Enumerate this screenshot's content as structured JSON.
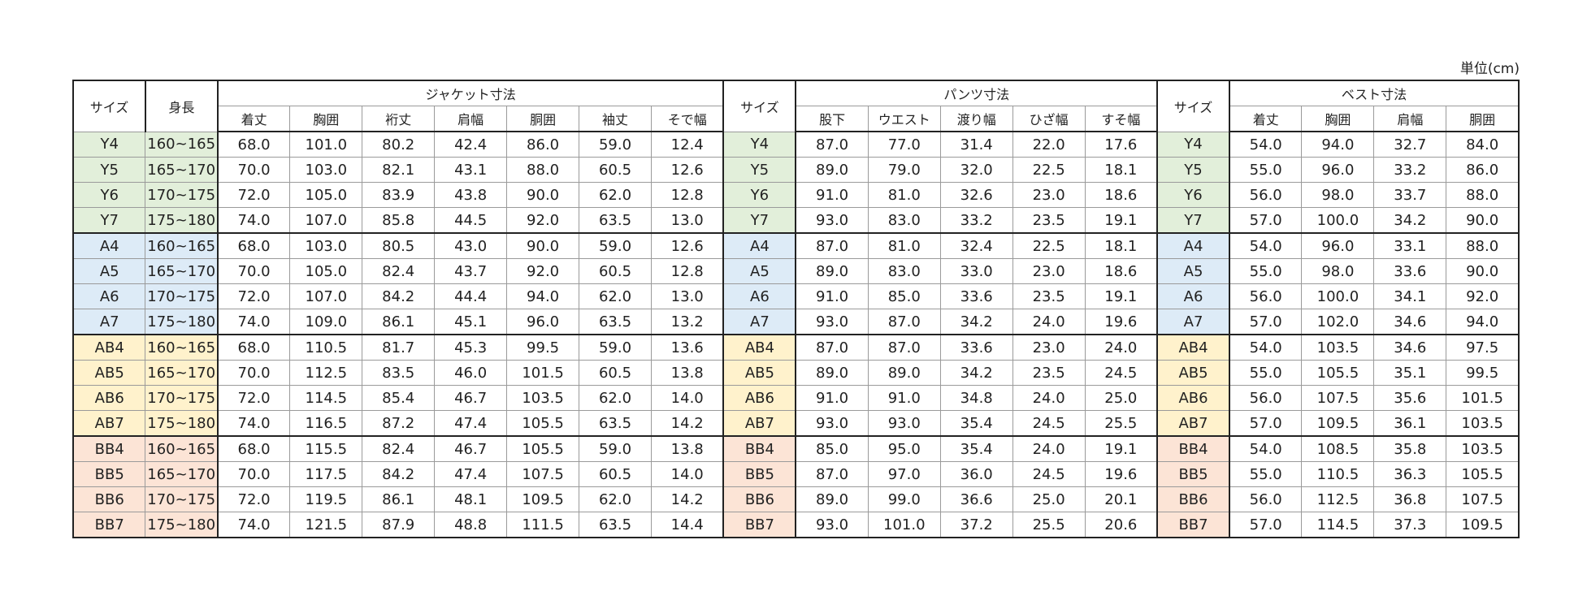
{
  "unit_label": "単位(cm)",
  "table": {
    "header_top": [
      "サイズ",
      "身長",
      "ジャケット寸法",
      "サイズ",
      "パンツ寸法",
      "サイズ",
      "ベスト寸法"
    ],
    "header_sub": [
      "着丈",
      "胸囲",
      "裄丈",
      "肩幅",
      "胴囲",
      "袖丈",
      "そで幅",
      "股下",
      "ウエスト",
      "渡り幅",
      "ひざ幅",
      "すそ幅",
      "着丈",
      "胸囲",
      "肩幅",
      "胴囲"
    ],
    "rows": [
      [
        "Y4",
        "160~165",
        "68.0",
        "101.0",
        "80.2",
        "42.4",
        "86.0",
        "59.0",
        "12.4",
        "Y4",
        "87.0",
        "77.0",
        "31.4",
        "22.0",
        "17.6",
        "Y4",
        "54.0",
        "94.0",
        "32.7",
        "84.0"
      ],
      [
        "Y5",
        "165~170",
        "70.0",
        "103.0",
        "82.1",
        "43.1",
        "88.0",
        "60.5",
        "12.6",
        "Y5",
        "89.0",
        "79.0",
        "32.0",
        "22.5",
        "18.1",
        "Y5",
        "55.0",
        "96.0",
        "33.2",
        "86.0"
      ],
      [
        "Y6",
        "170~175",
        "72.0",
        "105.0",
        "83.9",
        "43.8",
        "90.0",
        "62.0",
        "12.8",
        "Y6",
        "91.0",
        "81.0",
        "32.6",
        "23.0",
        "18.6",
        "Y6",
        "56.0",
        "98.0",
        "33.7",
        "88.0"
      ],
      [
        "Y7",
        "175~180",
        "74.0",
        "107.0",
        "85.8",
        "44.5",
        "92.0",
        "63.5",
        "13.0",
        "Y7",
        "93.0",
        "83.0",
        "33.2",
        "23.5",
        "19.1",
        "Y7",
        "57.0",
        "100.0",
        "34.2",
        "90.0"
      ],
      [
        "A4",
        "160~165",
        "68.0",
        "103.0",
        "80.5",
        "43.0",
        "90.0",
        "59.0",
        "12.6",
        "A4",
        "87.0",
        "81.0",
        "32.4",
        "22.5",
        "18.1",
        "A4",
        "54.0",
        "96.0",
        "33.1",
        "88.0"
      ],
      [
        "A5",
        "165~170",
        "70.0",
        "105.0",
        "82.4",
        "43.7",
        "92.0",
        "60.5",
        "12.8",
        "A5",
        "89.0",
        "83.0",
        "33.0",
        "23.0",
        "18.6",
        "A5",
        "55.0",
        "98.0",
        "33.6",
        "90.0"
      ],
      [
        "A6",
        "170~175",
        "72.0",
        "107.0",
        "84.2",
        "44.4",
        "94.0",
        "62.0",
        "13.0",
        "A6",
        "91.0",
        "85.0",
        "33.6",
        "23.5",
        "19.1",
        "A6",
        "56.0",
        "100.0",
        "34.1",
        "92.0"
      ],
      [
        "A7",
        "175~180",
        "74.0",
        "109.0",
        "86.1",
        "45.1",
        "96.0",
        "63.5",
        "13.2",
        "A7",
        "93.0",
        "87.0",
        "34.2",
        "24.0",
        "19.6",
        "A7",
        "57.0",
        "102.0",
        "34.6",
        "94.0"
      ],
      [
        "AB4",
        "160~165",
        "68.0",
        "110.5",
        "81.7",
        "45.3",
        "99.5",
        "59.0",
        "13.6",
        "AB4",
        "87.0",
        "87.0",
        "33.6",
        "23.0",
        "24.0",
        "AB4",
        "54.0",
        "103.5",
        "34.6",
        "97.5"
      ],
      [
        "AB5",
        "165~170",
        "70.0",
        "112.5",
        "83.5",
        "46.0",
        "101.5",
        "60.5",
        "13.8",
        "AB5",
        "89.0",
        "89.0",
        "34.2",
        "23.5",
        "24.5",
        "AB5",
        "55.0",
        "105.5",
        "35.1",
        "99.5"
      ],
      [
        "AB6",
        "170~175",
        "72.0",
        "114.5",
        "85.4",
        "46.7",
        "103.5",
        "62.0",
        "14.0",
        "AB6",
        "91.0",
        "91.0",
        "34.8",
        "24.0",
        "25.0",
        "AB6",
        "56.0",
        "107.5",
        "35.6",
        "101.5"
      ],
      [
        "AB7",
        "175~180",
        "74.0",
        "116.5",
        "87.2",
        "47.4",
        "105.5",
        "63.5",
        "14.2",
        "AB7",
        "93.0",
        "93.0",
        "35.4",
        "24.5",
        "25.5",
        "AB7",
        "57.0",
        "109.5",
        "36.1",
        "103.5"
      ],
      [
        "BB4",
        "160~165",
        "68.0",
        "115.5",
        "82.4",
        "46.7",
        "105.5",
        "59.0",
        "13.8",
        "BB4",
        "85.0",
        "95.0",
        "35.4",
        "24.0",
        "19.1",
        "BB4",
        "54.0",
        "108.5",
        "35.8",
        "103.5"
      ],
      [
        "BB5",
        "165~170",
        "70.0",
        "117.5",
        "84.2",
        "47.4",
        "107.5",
        "60.5",
        "14.0",
        "BB5",
        "87.0",
        "97.0",
        "36.0",
        "24.5",
        "19.6",
        "BB5",
        "55.0",
        "110.5",
        "36.3",
        "105.5"
      ],
      [
        "BB6",
        "170~175",
        "72.0",
        "119.5",
        "86.1",
        "48.1",
        "109.5",
        "62.0",
        "14.2",
        "BB6",
        "89.0",
        "99.0",
        "36.6",
        "25.0",
        "20.1",
        "BB6",
        "56.0",
        "112.5",
        "36.8",
        "107.5"
      ],
      [
        "BB7",
        "175~180",
        "74.0",
        "121.5",
        "87.9",
        "48.8",
        "111.5",
        "63.5",
        "14.4",
        "BB7",
        "93.0",
        "101.0",
        "37.2",
        "25.5",
        "20.6",
        "BB7",
        "57.0",
        "114.5",
        "37.3",
        "109.5"
      ]
    ]
  }
}
